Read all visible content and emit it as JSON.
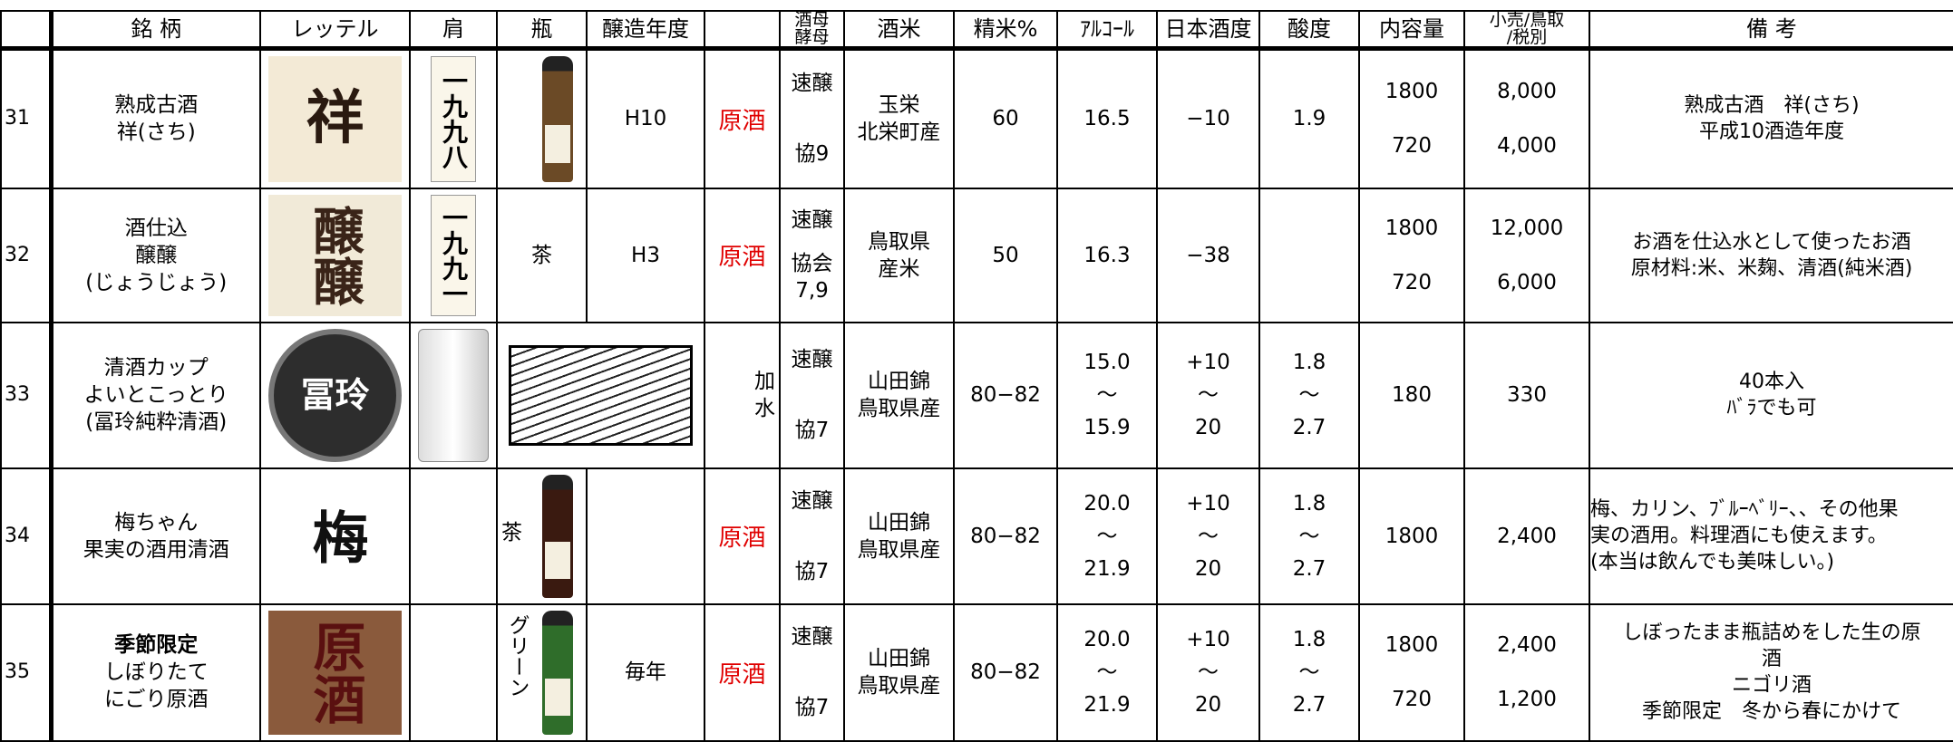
{
  "header": {
    "columns": [
      null,
      [
        "銘 柄"
      ],
      [
        "レッテル"
      ],
      [
        "肩"
      ],
      [
        "瓶"
      ],
      [
        "醸造年度"
      ],
      null,
      [
        "酒母",
        "酵母"
      ],
      [
        "酒米"
      ],
      [
        "精米%"
      ],
      [
        "ｱﾙｺｰﾙ"
      ],
      [
        "日本酒度"
      ],
      [
        "酸度"
      ],
      [
        "内容量"
      ],
      [
        "小売/鳥取",
        "/税別"
      ],
      [
        "備 考"
      ]
    ]
  },
  "table": {
    "rows": [
      {
        "no": "31",
        "name": [
          "熟成古酒",
          "祥(さち)"
        ],
        "label": "祥",
        "kata": "一九九八",
        "bin": null,
        "year": "H10",
        "genshu": "原酒",
        "koubo": [
          "速醸",
          "協9"
        ],
        "kome": [
          "玉栄",
          "北栄町産"
        ],
        "seimai": "60",
        "alc": [
          "16.5"
        ],
        "nihonshudo": [
          "−10"
        ],
        "sando": [
          "1.9"
        ],
        "volume": [
          "1800",
          "720"
        ],
        "price": [
          "8,000",
          "4,000"
        ],
        "note": [
          "熟成古酒　祥(さち)",
          "平成10酒造年度"
        ]
      },
      {
        "no": "32",
        "name": [
          "酒仕込",
          "醸醸",
          "(じょうじょう)"
        ],
        "label": "醸醸",
        "kata": "一九九一",
        "bin": "茶",
        "year": "H3",
        "genshu": "原酒",
        "koubo": [
          "速醸",
          "協会",
          "7,9"
        ],
        "kome": [
          "鳥取県",
          "産米"
        ],
        "seimai": "50",
        "alc": [
          "16.3"
        ],
        "nihonshudo": [
          "−38"
        ],
        "sando": null,
        "volume": [
          "1800",
          "720"
        ],
        "price": [
          "12,000",
          "6,000"
        ],
        "note": [
          "お酒を仕込水として使ったお酒",
          "原材料:米、米麹、清酒(純米酒)"
        ]
      },
      {
        "no": "33",
        "name": [
          "清酒カップ",
          "よいとこっとり",
          "(冨玲純粋清酒)"
        ],
        "label": "冨玲",
        "kata": null,
        "bin": null,
        "year": null,
        "genshu": [
          "加",
          "水"
        ],
        "koubo": [
          "速醸",
          "協7"
        ],
        "kome": [
          "山田錦",
          "鳥取県産"
        ],
        "seimai": "80−82",
        "alc": [
          "15.0",
          "～",
          "15.9"
        ],
        "nihonshudo": [
          "+10",
          "～",
          "20"
        ],
        "sando": [
          "1.8",
          "～",
          "2.7"
        ],
        "volume": [
          "180"
        ],
        "price": [
          "330"
        ],
        "note": [
          "40本入",
          "ﾊﾞﾗでも可"
        ]
      },
      {
        "no": "34",
        "name": [
          "梅ちゃん",
          "果実の酒用清酒"
        ],
        "label": "梅",
        "kata": null,
        "bin": "茶",
        "year": null,
        "genshu": "原酒",
        "koubo": [
          "速醸",
          "協7"
        ],
        "kome": [
          "山田錦",
          "鳥取県産"
        ],
        "seimai": "80−82",
        "alc": [
          "20.0",
          "～",
          "21.9"
        ],
        "nihonshudo": [
          "+10",
          "～",
          "20"
        ],
        "sando": [
          "1.8",
          "～",
          "2.7"
        ],
        "volume": [
          "1800"
        ],
        "price": [
          "2,400"
        ],
        "note": [
          "梅、カリン、ﾌﾞﾙｰﾍﾞﾘｰ、、その他果",
          "実の酒用。料理酒にも使えます。",
          "(本当は飲んでも美味しい。)"
        ]
      },
      {
        "no": "35",
        "name": [
          "季節限定",
          "しぼりたて",
          "にごり原酒"
        ],
        "label": "原酒",
        "kata": null,
        "bin": "グリーン",
        "year": "毎年",
        "genshu": "原酒",
        "koubo": [
          "速醸",
          "協7"
        ],
        "kome": [
          "山田錦",
          "鳥取県産"
        ],
        "seimai": "80−82",
        "alc": [
          "20.0",
          "～",
          "21.9"
        ],
        "nihonshudo": [
          "+10",
          "～",
          "20"
        ],
        "sando": [
          "1.8",
          "～",
          "2.7"
        ],
        "volume": [
          "1800",
          "720"
        ],
        "price": [
          "2,400",
          "1,200"
        ],
        "note": [
          "しぼったまま瓶詰めをした生の原",
          "酒",
          "ニゴリ酒",
          "季節限定　冬から春にかけて"
        ]
      }
    ]
  }
}
